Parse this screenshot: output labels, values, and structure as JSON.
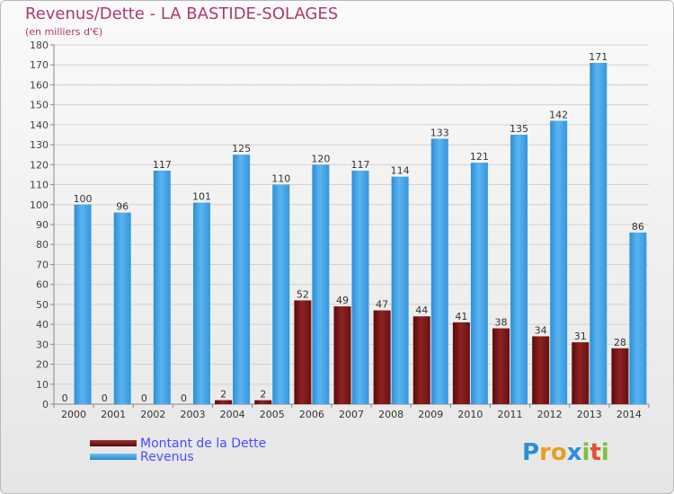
{
  "header": {
    "title": "Revenus/Dette - LA BASTIDE-SOLAGES",
    "subtitle": "(en milliers d'€)"
  },
  "chart_data": {
    "type": "bar",
    "title": "Revenus/Dette - LA BASTIDE-SOLAGES",
    "ylabel": "(en milliers d'€)",
    "categories": [
      "2000",
      "2001",
      "2002",
      "2003",
      "2004",
      "2005",
      "2006",
      "2007",
      "2008",
      "2009",
      "2010",
      "2011",
      "2012",
      "2013",
      "2014"
    ],
    "series": [
      {
        "name": "Montant de la Dette",
        "color": "#7a1010",
        "values": [
          0,
          0,
          0,
          0,
          2,
          2,
          52,
          49,
          47,
          44,
          41,
          38,
          34,
          31,
          28
        ]
      },
      {
        "name": "Revenus",
        "color": "#3a9de0",
        "values": [
          100,
          96,
          117,
          101,
          125,
          110,
          120,
          117,
          114,
          133,
          121,
          135,
          142,
          171,
          86
        ]
      }
    ],
    "ylim": [
      0,
      180
    ],
    "yticks": [
      0,
      10,
      20,
      30,
      40,
      50,
      60,
      70,
      80,
      90,
      100,
      110,
      120,
      130,
      140,
      150,
      160,
      170,
      180
    ],
    "grid": true,
    "legend": "bottom-left"
  },
  "legend": {
    "items": [
      {
        "label": "Montant de la Dette",
        "color": "#7a1010"
      },
      {
        "label": "Revenus",
        "color": "#3a9de0"
      }
    ]
  },
  "logo": {
    "letters": [
      "P",
      "r",
      "o",
      "x",
      "i",
      "t",
      "i"
    ],
    "colors": [
      "#2a8fd8",
      "#e8a020",
      "#e8a020",
      "#2a8fd8",
      "#7cc040",
      "#e05030",
      "#7cc040"
    ]
  }
}
